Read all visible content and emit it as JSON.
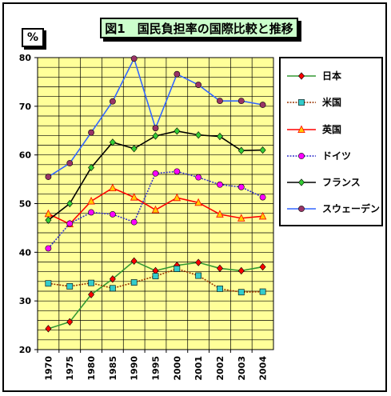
{
  "chart_data": {
    "type": "line",
    "title": "図1　国民負担率の国際比較と推移",
    "ylabel": "%",
    "xlabel": "",
    "categories": [
      "1970",
      "1975",
      "1980",
      "1985",
      "1990",
      "1995",
      "2000",
      "2001",
      "2002",
      "2003",
      "2004"
    ],
    "ylim": [
      20,
      80
    ],
    "yticks": [
      20,
      30,
      40,
      50,
      60,
      70,
      80
    ],
    "grid": true,
    "legend_position": "right",
    "plot_background": "#ffff99",
    "series": [
      {
        "name": "日本",
        "color": "#339933",
        "marker": "diamond",
        "marker_color": "#ff0000",
        "dash": false,
        "values": [
          24.3,
          25.7,
          31.3,
          34.5,
          38.2,
          36.2,
          37.3,
          37.9,
          36.7,
          36.2,
          37.0
        ]
      },
      {
        "name": "米国",
        "color": "#993300",
        "marker": "square",
        "marker_color": "#33cccc",
        "dash": true,
        "values": [
          33.6,
          33.0,
          33.7,
          32.6,
          33.8,
          35.1,
          36.6,
          35.2,
          32.5,
          31.8,
          31.9
        ]
      },
      {
        "name": "英国",
        "color": "#ff0000",
        "marker": "triangle",
        "marker_color": "#ffcc00",
        "dash": false,
        "values": [
          47.9,
          45.8,
          50.5,
          53.2,
          51.3,
          48.7,
          51.2,
          50.2,
          47.8,
          47.0,
          47.4
        ]
      },
      {
        "name": "ドイツ",
        "color": "#3333cc",
        "marker": "circle",
        "marker_color": "#ff00ff",
        "dash": true,
        "values": [
          40.8,
          45.9,
          48.2,
          47.8,
          46.2,
          56.2,
          56.6,
          55.4,
          53.9,
          53.4,
          51.3
        ]
      },
      {
        "name": "フランス",
        "color": "#000000",
        "marker": "diamond",
        "marker_color": "#33cc33",
        "dash": false,
        "values": [
          46.6,
          50.0,
          57.4,
          62.6,
          61.3,
          63.9,
          64.9,
          64.1,
          63.8,
          60.9,
          61.0
        ]
      },
      {
        "name": "スウェーデン",
        "color": "#3366ff",
        "marker": "circle",
        "marker_color": "#993366",
        "dash": false,
        "values": [
          55.5,
          58.3,
          64.6,
          71.0,
          79.8,
          65.5,
          76.6,
          74.4,
          71.1,
          71.1,
          70.3
        ]
      }
    ]
  }
}
